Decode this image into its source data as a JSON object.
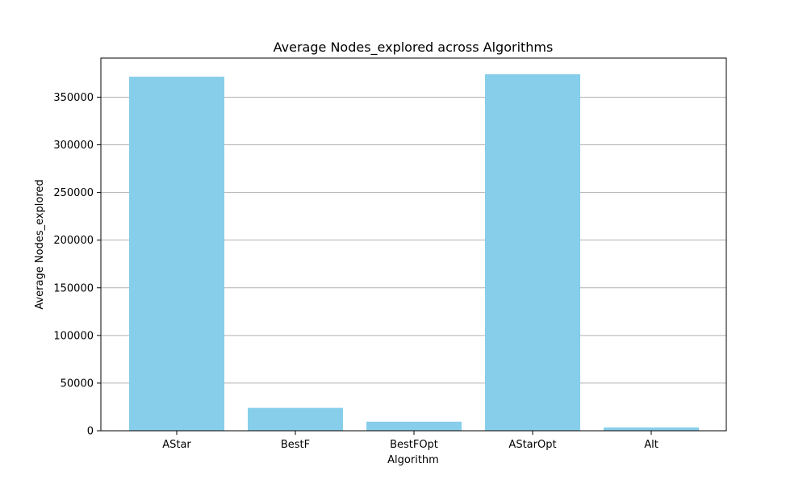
{
  "chart_data": {
    "type": "bar",
    "title": "Average Nodes_explored across Algorithms",
    "xlabel": "Algorithm",
    "ylabel": "Average Nodes_explored",
    "categories": [
      "AStar",
      "BestF",
      "BestFOpt",
      "AStarOpt",
      "Alt"
    ],
    "values": [
      371500,
      24000,
      9500,
      374000,
      3500
    ],
    "ylim": [
      0,
      391000
    ],
    "yticks": [
      0,
      50000,
      100000,
      150000,
      200000,
      250000,
      300000,
      350000
    ],
    "ytick_labels": [
      "0",
      "50000",
      "100000",
      "150000",
      "200000",
      "250000",
      "300000",
      "350000"
    ],
    "grid": "y",
    "colors": {
      "bar": "#87ceeb",
      "grid": "#b0b0b0",
      "axis": "#000000"
    }
  }
}
